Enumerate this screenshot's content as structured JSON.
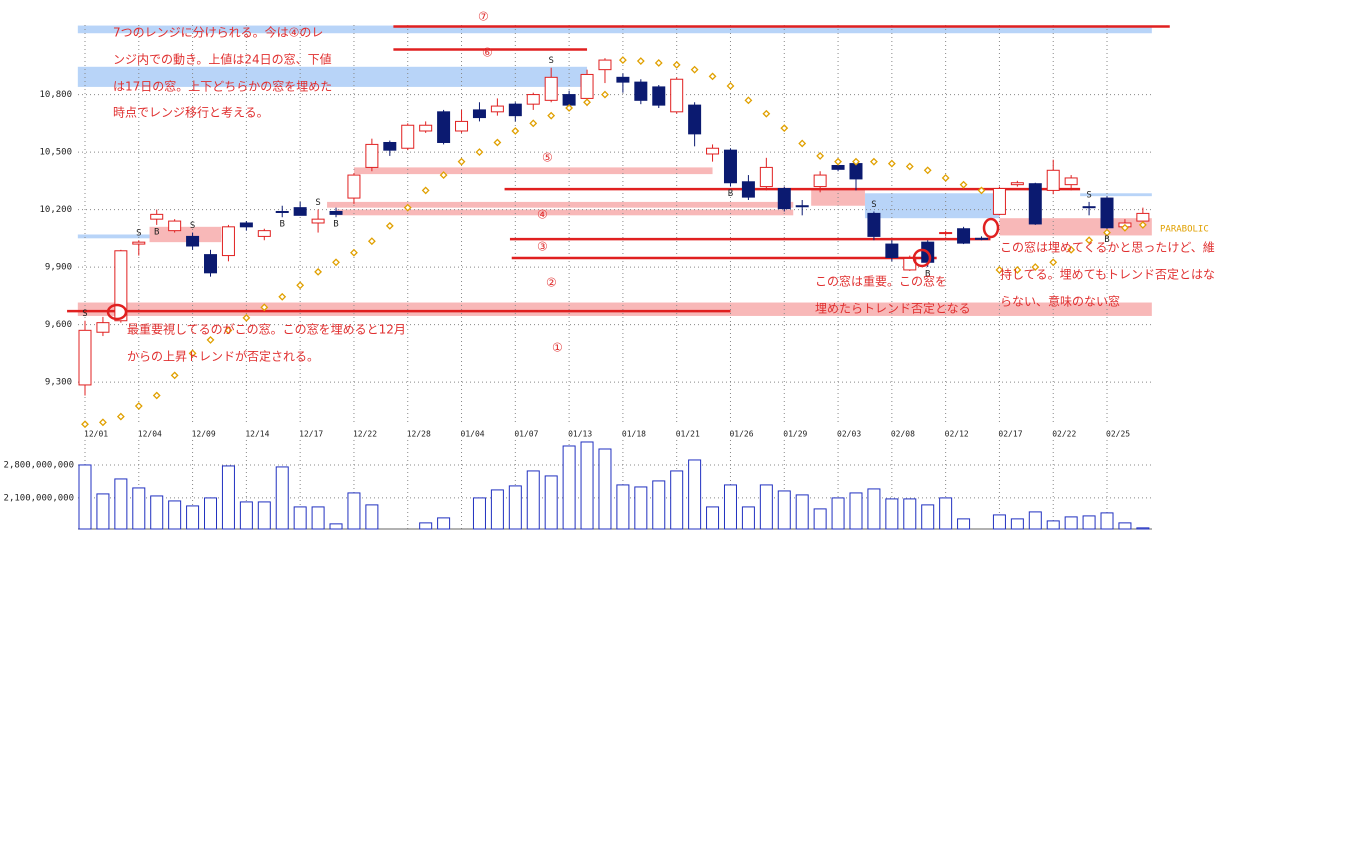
{
  "chart_data": {
    "type": "candlestick",
    "categories": [
      "12/01",
      null,
      null,
      "12/04",
      null,
      null,
      "12/09",
      null,
      null,
      "12/14",
      null,
      null,
      "12/17",
      null,
      null,
      "12/22",
      null,
      null,
      "12/28",
      null,
      null,
      "01/04",
      null,
      null,
      "01/07",
      null,
      null,
      "01/13",
      null,
      null,
      "01/18",
      null,
      null,
      "01/21",
      null,
      null,
      "01/26",
      null,
      null,
      "01/29",
      null,
      null,
      "02/03",
      null,
      null,
      "02/08",
      null,
      null,
      "02/12",
      null,
      null,
      "02/17",
      null,
      null,
      "02/22",
      null,
      null,
      "02/25",
      null,
      null
    ],
    "open": [
      9285,
      9560,
      9620,
      10020,
      10150,
      10090,
      10060,
      9965,
      9960,
      10130,
      10060,
      10190,
      10210,
      10130,
      10190,
      10260,
      10420,
      10550,
      10520,
      10610,
      10710,
      10610,
      10720,
      10710,
      10750,
      10750,
      10770,
      10800,
      10780,
      10930,
      10890,
      10865,
      10840,
      10710,
      10745,
      10490,
      10510,
      10345,
      10320,
      10310,
      10220,
      10320,
      10430,
      10440,
      10180,
      10020,
      9885,
      10030,
      10075,
      10100,
      10050,
      10175,
      10330,
      10335,
      10300,
      10330,
      10215,
      10260,
      10110,
      10140
    ],
    "high": [
      9620,
      9640,
      9990,
      10040,
      10200,
      10150,
      10080,
      9990,
      10120,
      10140,
      10100,
      10220,
      10240,
      10200,
      10210,
      10390,
      10570,
      10560,
      10650,
      10660,
      10720,
      10720,
      10760,
      10780,
      10760,
      10810,
      10940,
      10820,
      10930,
      10990,
      10910,
      10880,
      10850,
      10890,
      10760,
      10540,
      10520,
      10380,
      10470,
      10320,
      10250,
      10400,
      10440,
      10450,
      10190,
      10040,
      9960,
      10040,
      10090,
      10110,
      10060,
      10320,
      10350,
      10340,
      10460,
      10380,
      10240,
      10270,
      10150,
      10210
    ],
    "low": [
      9230,
      9540,
      9610,
      9960,
      10120,
      10080,
      9990,
      9850,
      9930,
      10090,
      10040,
      10160,
      10170,
      10080,
      10160,
      10230,
      10400,
      10480,
      10510,
      10600,
      10540,
      10600,
      10660,
      10690,
      10660,
      10720,
      10760,
      10740,
      10740,
      10860,
      10810,
      10750,
      10730,
      10700,
      10530,
      10450,
      10320,
      10250,
      10300,
      10190,
      10170,
      10290,
      10400,
      10300,
      10040,
      9930,
      9880,
      9900,
      10060,
      10020,
      10040,
      10170,
      10320,
      10120,
      10280,
      10300,
      10170,
      10080,
      10090,
      10120
    ],
    "close": [
      9570,
      9610,
      9985,
      10030,
      10175,
      10140,
      10010,
      9870,
      10110,
      10110,
      10090,
      10185,
      10170,
      10150,
      10175,
      10380,
      10540,
      10510,
      10640,
      10640,
      10550,
      10660,
      10680,
      10740,
      10690,
      10800,
      10890,
      10745,
      10905,
      10980,
      10865,
      10770,
      10745,
      10880,
      10595,
      10520,
      10340,
      10265,
      10420,
      10205,
      10215,
      10380,
      10410,
      10360,
      10060,
      9950,
      9945,
      9925,
      10080,
      10025,
      10045,
      10310,
      10340,
      10125,
      10405,
      10365,
      10210,
      10105,
      10130,
      10180
    ],
    "up_color": "#e02020",
    "down_color": "#0b1a70",
    "ylim": [
      9076,
      11163
    ],
    "yticks": [
      {
        "value": 9300,
        "label": "9,300"
      },
      {
        "value": 9600,
        "label": "9,600"
      },
      {
        "value": 9900,
        "label": "9,900"
      },
      {
        "value": 10200,
        "label": "10,200"
      },
      {
        "value": 10500,
        "label": "10,500"
      },
      {
        "value": 10800,
        "label": "10,800"
      }
    ],
    "grid": true,
    "parabolic": {
      "name": "PARABOLIC",
      "color": "#e0a000",
      "values": [
        9080,
        9090,
        9120,
        9175,
        9230,
        9335,
        9450,
        9520,
        9570,
        9635,
        9690,
        9745,
        9805,
        9875,
        9925,
        9975,
        10035,
        10115,
        10210,
        10300,
        10380,
        10450,
        10500,
        10550,
        10610,
        10650,
        10690,
        10730,
        10760,
        10800,
        10980,
        10975,
        10965,
        10955,
        10930,
        10895,
        10845,
        10770,
        10700,
        10625,
        10545,
        10480,
        10450,
        10450,
        10450,
        10440,
        10425,
        10405,
        10365,
        10330,
        10300,
        9885,
        9885,
        9900,
        9925,
        9990,
        10040,
        10080,
        10105,
        10120
      ]
    },
    "volume": {
      "color": "#2030c0",
      "values": [
        2800000000,
        2185000000,
        2503000000,
        2312000000,
        2142000000,
        2036000000,
        1930000000,
        2100000000,
        2779000000,
        2015000000,
        2015000000,
        2758000000,
        1909000000,
        1909000000,
        1549000000,
        2206000000,
        1952000000,
        null,
        null,
        1570000000,
        1676000000,
        null,
        2100000000,
        2270000000,
        2355000000,
        2673000000,
        2567000000,
        3203000000,
        3288000000,
        3139000000,
        2376000000,
        2333000000,
        2461000000,
        2673000000,
        2906000000,
        1909000000,
        2376000000,
        1909000000,
        2376000000,
        2248000000,
        2164000000,
        1867000000,
        2100000000,
        2206000000,
        2291000000,
        2079000000,
        2079000000,
        1952000000,
        2100000000,
        1655000000,
        null,
        1739000000,
        1655000000,
        1803000000,
        1612000000,
        1697000000,
        1718000000,
        1782000000,
        1570000000,
        1464000000
      ],
      "y2lim": [
        1440000000,
        3330000000
      ],
      "y2ticks": [
        {
          "value": 2100000000,
          "label": "2,100,000,000"
        },
        {
          "value": 2800000000,
          "label": "2,800,000,000"
        }
      ]
    },
    "signals": [
      {
        "label": "S",
        "index": 0,
        "side": "above"
      },
      {
        "label": "S",
        "index": 3,
        "side": "above"
      },
      {
        "label": "B",
        "index": 4,
        "side": "below"
      },
      {
        "label": "S",
        "index": 6,
        "side": "above"
      },
      {
        "label": "B",
        "index": 11,
        "side": "below"
      },
      {
        "label": "S",
        "index": 13,
        "side": "above"
      },
      {
        "label": "B",
        "index": 14,
        "side": "below"
      },
      {
        "label": "S",
        "index": 26,
        "side": "above"
      },
      {
        "label": "B",
        "index": 36,
        "side": "below"
      },
      {
        "label": "S",
        "index": 44,
        "side": "above"
      },
      {
        "label": "B",
        "index": 47,
        "side": "below"
      },
      {
        "label": "S",
        "index": 56,
        "side": "above"
      },
      {
        "label": "B",
        "index": 57,
        "side": "below"
      }
    ],
    "zones": [
      {
        "from": 11120,
        "to": 11160,
        "start": -0.4,
        "end": 59.5,
        "color": "#b8d4f8"
      },
      {
        "from": 10840,
        "to": 10945,
        "start": -0.4,
        "end": 28,
        "color": "#b8d4f8"
      },
      {
        "from": 10050,
        "to": 10070,
        "start": -0.4,
        "end": 7.6,
        "color": "#b8d4f8"
      },
      {
        "from": 10155,
        "to": 10285,
        "start": 43.5,
        "end": 51,
        "color": "#b8d4f8"
      },
      {
        "from": 10270,
        "to": 10285,
        "start": 55.5,
        "end": 59.5,
        "color": "#b8d4f8"
      },
      {
        "from": 10030,
        "to": 10110,
        "start": 3.6,
        "end": 7.6,
        "color": "#f8b8b8"
      },
      {
        "from": 10385,
        "to": 10420,
        "start": 15,
        "end": 35,
        "color": "#f8b8b8"
      },
      {
        "from": 10210,
        "to": 10240,
        "start": 13.5,
        "end": 39.5,
        "color": "#f8b8b8"
      },
      {
        "from": 10170,
        "to": 10200,
        "start": 14,
        "end": 39.5,
        "color": "#f8b8b8"
      },
      {
        "from": 10220,
        "to": 10310,
        "start": 40.5,
        "end": 43.5,
        "color": "#f8b8b8"
      },
      {
        "from": 9645,
        "to": 9715,
        "start": -0.4,
        "end": 59.5,
        "color": "#f8b8b8"
      },
      {
        "from": 10065,
        "to": 10155,
        "start": 51,
        "end": 59.5,
        "color": "#f8b8b8"
      }
    ],
    "levels": [
      {
        "value": 11155,
        "start": 17.2,
        "end": 60.5,
        "color": "#e02020"
      },
      {
        "value": 11035,
        "start": 17.2,
        "end": 28,
        "color": "#e02020"
      },
      {
        "value": 10307,
        "start": 23.4,
        "end": 55.5,
        "color": "#e02020"
      },
      {
        "value": 10046,
        "start": 23.7,
        "end": 50.5,
        "color": "#e02020"
      },
      {
        "value": 9947,
        "start": 23.8,
        "end": 47.5,
        "color": "#e02020"
      },
      {
        "value": 9670,
        "start": -1,
        "end": 36,
        "color": "#e02020"
      }
    ],
    "range_labels": [
      "⑦",
      "⑥",
      "⑤",
      "④",
      "③",
      "②",
      "①"
    ],
    "notes": [
      [
        "7つのレンジに分けられる。今は④のレ",
        "ンジ内での動き。上値は24日の窓、下値",
        "は17日の窓。上下どちらかの窓を埋めた",
        "時点でレンジ移行と考える。"
      ],
      [
        "最重要視してるのがこの窓。この窓を埋めると12月",
        "からの上昇トレンドが否定される。"
      ],
      [
        "この窓は重要。この窓を",
        "埋めたらトレンド否定となる"
      ],
      [
        "この窓は埋めてくるかと思ったけど、維",
        "持してる。埋めてもトレンド否定とはな",
        "らない、意味のない窓"
      ]
    ]
  }
}
